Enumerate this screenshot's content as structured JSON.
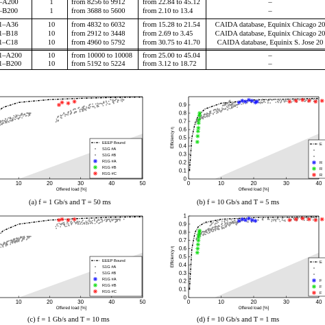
{
  "table": {
    "rows": [
      {
        "id": "–A200",
        "n": "1",
        "flows": "from 8256 to 9912",
        "load": "from 22.84 to 45.12",
        "source": "–"
      },
      {
        "id": "–B200",
        "n": "1",
        "flows": "from 3688 to 5600",
        "load": "from 2.10 to 13.4",
        "source": "–"
      },
      {
        "id": "1–A36",
        "n": "10",
        "flows": "from 4832 to 6032",
        "load": "from 15.28 to 21.54",
        "source": "CAIDA database, Equinix Chicago 20"
      },
      {
        "id": "1–B18",
        "n": "10",
        "flows": "from 2912 to 3448",
        "load": "from 2.69 to 3.45",
        "source": "CAIDA database, Equinix Chicago 20"
      },
      {
        "id": "1–C18",
        "n": "10",
        "flows": "from 4960 to 5792",
        "load": "from 30.75 to 41.70",
        "source": "CAIDA database, Equinix S. Jose 20"
      },
      {
        "id": "1–A200",
        "n": "10",
        "flows": "from 10000 to 10008",
        "load": "from 25.00 to 45.04",
        "source": "–"
      },
      {
        "id": "1–B200",
        "n": "10",
        "flows": "from 5192 to 5224",
        "load": "from 3.12 to 18.72",
        "source": "–"
      }
    ]
  },
  "colors": {
    "S1G_A": "#8a8a8a",
    "S1G_B": "#8a8a8a",
    "R1G_A": "#1a1aff",
    "R1G_B": "#11dd11",
    "R1G_C": "#ff2020",
    "EEEP": "#000000",
    "region": "#e3e3e3"
  },
  "legend": {
    "full": [
      "EEEP Bound",
      "S1G #A",
      "S1G #B",
      "R1G #A",
      "R1G #B",
      "R1G #C"
    ],
    "cut_b": [
      "E",
      "",
      "",
      "R",
      "R",
      "R"
    ],
    "cut_d": [
      "E",
      "",
      "",
      "F",
      "F",
      "F"
    ]
  },
  "panels": {
    "a": {
      "caption": "(a)  f = 1 Gb/s and T = 50 ms",
      "xlabel": "Offered load [%]",
      "ylabel": "",
      "xticks": [
        "10",
        "20",
        "30",
        "40",
        "50"
      ],
      "yticks": []
    },
    "b": {
      "caption": "(b)  f = 10 Gb/s and T = 5 ms",
      "xlabel": "Offered load [%]",
      "ylabel": "Efficiency η",
      "xticks": [
        "0",
        "10",
        "20",
        "30",
        "40"
      ],
      "yticks": [
        "0.9",
        "0.8",
        "0.7",
        "0.6",
        "0.5",
        "0.4",
        "0.3",
        "0.2",
        "0.1",
        "0"
      ]
    },
    "c": {
      "caption": "(c)  f = 1 Gb/s and T = 10 ms",
      "xlabel": "Offered load [%]",
      "ylabel": "",
      "xticks": [
        "10",
        "20",
        "30",
        "40",
        "50"
      ],
      "yticks": []
    },
    "d": {
      "caption": "(d)  f = 10 Gb/s and T = 1 ms",
      "xlabel": "Offered load [%]",
      "ylabel": "Efficiency η",
      "xticks": [
        "0",
        "10",
        "20",
        "30",
        "40"
      ],
      "yticks": [
        "1",
        "0.9",
        "0.8",
        "0.7",
        "0.6",
        "0.5",
        "0.4",
        "0.3",
        "0.2",
        "0.1",
        "0"
      ]
    }
  },
  "chart_data": [
    {
      "id": "a",
      "type": "scatter",
      "title": "",
      "xlabel": "Offered load [%]",
      "ylabel": "",
      "xlim": [
        0,
        50
      ],
      "ylim": [
        0,
        1
      ],
      "series": [
        {
          "name": "EEEP Bound",
          "kind": "line",
          "x": [
            0,
            2,
            5,
            10,
            20,
            30,
            40,
            50
          ],
          "y": [
            0.55,
            0.78,
            0.87,
            0.93,
            0.965,
            0.98,
            0.99,
            0.995
          ]
        },
        {
          "name": "S1G #A",
          "kind": "cloud",
          "x": [
            22,
            44
          ],
          "y": [
            0.55,
            0.97
          ]
        },
        {
          "name": "S1G #B",
          "kind": "cloud",
          "x": [
            0,
            14
          ],
          "y": [
            0.45,
            0.8
          ]
        },
        {
          "name": "R1G #A",
          "x": [
            0.5,
            1,
            1.5,
            2
          ],
          "y": [
            0.58,
            0.62,
            0.65,
            0.6
          ]
        },
        {
          "name": "R1G #B",
          "x": [],
          "y": []
        },
        {
          "name": "R1G #C",
          "x": [
            23,
            24,
            26,
            28
          ],
          "y": [
            0.9,
            0.93,
            0.92,
            0.94
          ]
        }
      ]
    },
    {
      "id": "b",
      "type": "scatter",
      "title": "",
      "xlabel": "Offered load [%]",
      "ylabel": "Efficiency η",
      "xlim": [
        0,
        40
      ],
      "ylim": [
        0,
        1
      ],
      "series": [
        {
          "name": "EEEP Bound",
          "kind": "line",
          "x": [
            0.3,
            1,
            2,
            3,
            5,
            10,
            20,
            40
          ],
          "y": [
            0.1,
            0.5,
            0.68,
            0.77,
            0.85,
            0.92,
            0.96,
            0.98
          ]
        },
        {
          "name": "S1G #A",
          "kind": "cloud",
          "x": [
            10,
            40
          ],
          "y": [
            0.88,
            0.97
          ]
        },
        {
          "name": "S1G #B",
          "kind": "cloud",
          "x": [
            2,
            15
          ],
          "y": [
            0.55,
            0.9
          ]
        },
        {
          "name": "R1G #A",
          "x": [
            15.5,
            16.5,
            17.5,
            18.5,
            19.5,
            20.5,
            21
          ],
          "y": [
            0.93,
            0.95,
            0.94,
            0.96,
            0.95,
            0.93,
            0.94
          ]
        },
        {
          "name": "R1G #B",
          "x": [
            2.7,
            2.8,
            2.9,
            3,
            3.1,
            3.2,
            3.3,
            3.4
          ],
          "y": [
            0.45,
            0.52,
            0.58,
            0.62,
            0.68,
            0.72,
            0.77,
            0.8
          ]
        },
        {
          "name": "R1G #C",
          "x": [
            31,
            33,
            35,
            37,
            39,
            41
          ],
          "y": [
            0.94,
            0.95,
            0.96,
            0.95,
            0.94,
            0.95
          ]
        }
      ]
    },
    {
      "id": "c",
      "type": "scatter",
      "title": "",
      "xlabel": "Offered load [%]",
      "ylabel": "",
      "xlim": [
        0,
        50
      ],
      "ylim": [
        0,
        1
      ],
      "series": [
        {
          "name": "EEEP Bound",
          "kind": "line",
          "x": [
            0,
            2,
            5,
            10,
            20,
            30,
            40,
            50
          ],
          "y": [
            0.5,
            0.7,
            0.82,
            0.9,
            0.95,
            0.97,
            0.985,
            0.99
          ]
        },
        {
          "name": "S1G #A",
          "kind": "cloud",
          "x": [
            22,
            44
          ],
          "y": [
            0.82,
            0.96
          ]
        },
        {
          "name": "S1G #B",
          "kind": "cloud",
          "x": [
            0,
            14
          ],
          "y": [
            0.4,
            0.75
          ]
        },
        {
          "name": "R1G #A",
          "x": [
            0.5,
            1,
            1.5
          ],
          "y": [
            0.45,
            0.52,
            0.6
          ]
        },
        {
          "name": "R1G #B",
          "x": [],
          "y": []
        },
        {
          "name": "R1G #C",
          "x": [
            23,
            24,
            26,
            28
          ],
          "y": [
            0.95,
            0.96,
            0.95,
            0.96
          ]
        }
      ]
    },
    {
      "id": "d",
      "type": "scatter",
      "title": "",
      "xlabel": "Offered load [%]",
      "ylabel": "Efficiency η",
      "xlim": [
        0,
        40
      ],
      "ylim": [
        0,
        1
      ],
      "series": [
        {
          "name": "EEEP Bound",
          "kind": "line",
          "x": [
            0.3,
            1,
            2,
            3,
            5,
            10,
            20,
            40
          ],
          "y": [
            0.1,
            0.6,
            0.8,
            0.87,
            0.92,
            0.96,
            0.98,
            0.99
          ]
        },
        {
          "name": "S1G #A",
          "kind": "cloud",
          "x": [
            5,
            40
          ],
          "y": [
            0.85,
            0.98
          ]
        },
        {
          "name": "S1G #B",
          "kind": "cloud",
          "x": [
            2,
            15
          ],
          "y": [
            0.6,
            0.92
          ]
        },
        {
          "name": "R1G #A",
          "x": [
            15.5,
            16.5,
            17.5,
            18.5,
            19.5,
            20.5
          ],
          "y": [
            0.94,
            0.96,
            0.95,
            0.97,
            0.95,
            0.94
          ]
        },
        {
          "name": "R1G #B",
          "x": [
            2.7,
            2.8,
            2.9,
            3,
            3.1,
            3.2,
            3.3,
            3.4
          ],
          "y": [
            0.55,
            0.6,
            0.65,
            0.7,
            0.74,
            0.77,
            0.8,
            0.82
          ]
        },
        {
          "name": "R1G #C",
          "x": [
            31,
            33,
            35,
            37,
            39,
            41
          ],
          "y": [
            0.95,
            0.96,
            0.97,
            0.96,
            0.95,
            0.96
          ]
        }
      ]
    }
  ]
}
